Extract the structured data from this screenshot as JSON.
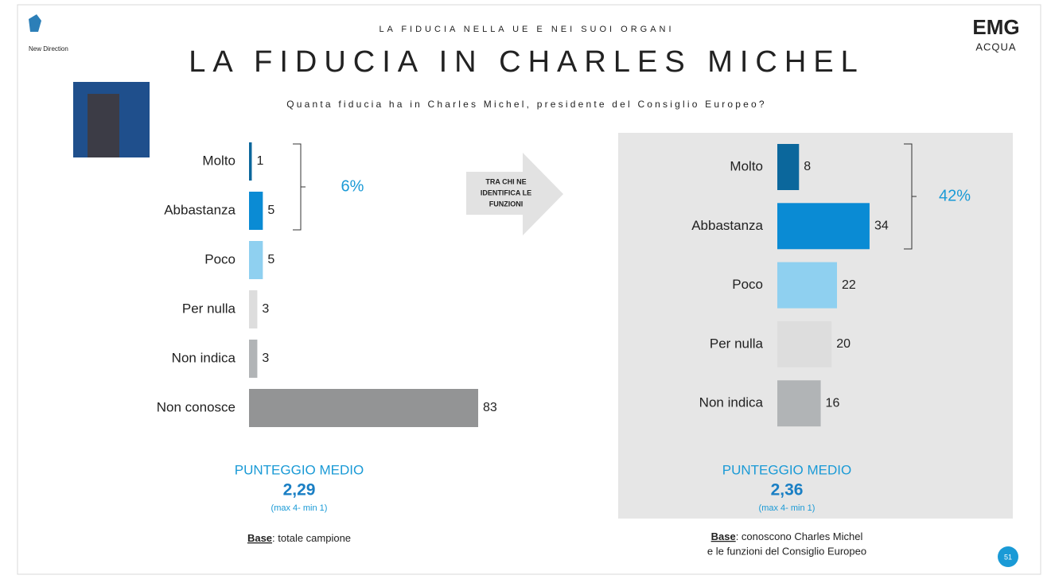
{
  "header": {
    "kicker": "LA FIDUCIA NELLA UE E NEI SUOI ORGANI",
    "title": "LA FIDUCIA IN CHARLES MICHEL",
    "question": "Quanta fiducia ha in Charles Michel, presidente del Consiglio Europeo?"
  },
  "logos": {
    "left": "New Direction",
    "right_top": "EMG",
    "right_bottom": "ACQUA"
  },
  "arrow_label": [
    "TRA CHI  NE",
    "IDENTIFICA LE",
    "FUNZIONI"
  ],
  "chart_data": [
    {
      "type": "bar",
      "orientation": "horizontal",
      "categories": [
        "Molto",
        "Abbastanza",
        "Poco",
        "Per nulla",
        "Non indica",
        "Non conosce"
      ],
      "values": [
        1,
        5,
        5,
        3,
        3,
        83
      ],
      "colors": [
        "#0b679c",
        "#0a8bd4",
        "#8fd0f0",
        "#dddddd",
        "#b1b4b6",
        "#939495"
      ],
      "bracket_label": "6%",
      "score_title": "PUNTEGGIO MEDIO",
      "score": "2,29",
      "score_note": "(max 4- min 1)",
      "base_label": "Base",
      "base_text": [
        ": totale campione"
      ]
    },
    {
      "type": "bar",
      "orientation": "horizontal",
      "categories": [
        "Molto",
        "Abbastanza",
        "Poco",
        "Per nulla",
        "Non indica"
      ],
      "values": [
        8,
        34,
        22,
        20,
        16
      ],
      "colors": [
        "#0b679c",
        "#0a8bd4",
        "#8fd0f0",
        "#dddddd",
        "#b1b4b6"
      ],
      "bracket_label": "42%",
      "score_title": "PUNTEGGIO MEDIO",
      "score": "2,36",
      "score_note": "(max 4- min 1)",
      "base_label": "Base",
      "base_text": [
        ": conoscono Charles Michel",
        "e le funzioni del Consiglio Europeo"
      ]
    }
  ],
  "page_number": "51"
}
